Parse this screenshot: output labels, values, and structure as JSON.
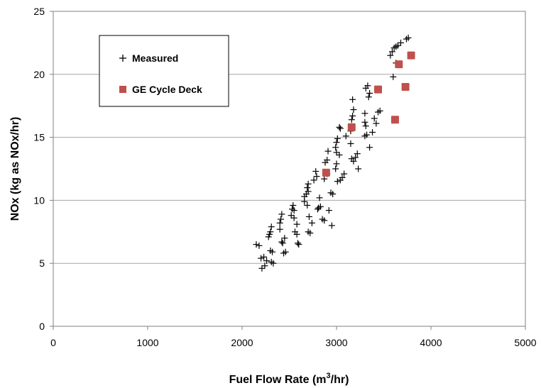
{
  "chart_data": {
    "type": "scatter",
    "xlabel": "Fuel Flow Rate (m",
    "xlabel_sup": "3",
    "xlabel_tail": "/hr)",
    "ylabel": "NOx (kg as NOx/hr)",
    "xlim": [
      0,
      5000
    ],
    "ylim": [
      0,
      25
    ],
    "x_ticks": [
      "0",
      "1000",
      "2000",
      "3000",
      "4000",
      "5000"
    ],
    "y_ticks": [
      "0",
      "5",
      "10",
      "15",
      "20",
      "25"
    ],
    "grid": "horizontal",
    "legend_position": "top-left",
    "series": [
      {
        "name": "Measured",
        "marker": "plus",
        "color": "#000000",
        "points": [
          [
            2150,
            6.5
          ],
          [
            2180,
            6.4
          ],
          [
            2200,
            5.4
          ],
          [
            2230,
            5.5
          ],
          [
            2210,
            4.6
          ],
          [
            2240,
            4.8
          ],
          [
            2260,
            5.2
          ],
          [
            2290,
            7.3
          ],
          [
            2300,
            7.5
          ],
          [
            2310,
            7.9
          ],
          [
            2280,
            7.1
          ],
          [
            2300,
            6.0
          ],
          [
            2320,
            5.9
          ],
          [
            2310,
            5.1
          ],
          [
            2330,
            5.0
          ],
          [
            2400,
            8.2
          ],
          [
            2410,
            8.5
          ],
          [
            2420,
            8.9
          ],
          [
            2400,
            7.7
          ],
          [
            2420,
            6.7
          ],
          [
            2430,
            6.6
          ],
          [
            2440,
            5.8
          ],
          [
            2460,
            5.9
          ],
          [
            2450,
            7.0
          ],
          [
            2530,
            9.3
          ],
          [
            2540,
            9.6
          ],
          [
            2550,
            9.2
          ],
          [
            2520,
            8.8
          ],
          [
            2550,
            8.6
          ],
          [
            2560,
            7.5
          ],
          [
            2580,
            7.3
          ],
          [
            2590,
            6.6
          ],
          [
            2600,
            6.5
          ],
          [
            2580,
            8.1
          ],
          [
            2660,
            10.3
          ],
          [
            2680,
            10.5
          ],
          [
            2700,
            10.7
          ],
          [
            2690,
            11.0
          ],
          [
            2700,
            11.3
          ],
          [
            2660,
            9.9
          ],
          [
            2690,
            9.6
          ],
          [
            2710,
            8.7
          ],
          [
            2700,
            7.5
          ],
          [
            2720,
            7.4
          ],
          [
            2740,
            8.2
          ],
          [
            2760,
            11.6
          ],
          [
            2790,
            11.9
          ],
          [
            2780,
            12.3
          ],
          [
            2800,
            9.3
          ],
          [
            2810,
            9.4
          ],
          [
            2830,
            9.5
          ],
          [
            2850,
            8.5
          ],
          [
            2870,
            8.4
          ],
          [
            2820,
            10.2
          ],
          [
            2880,
            13.0
          ],
          [
            2900,
            13.2
          ],
          [
            2910,
            13.9
          ],
          [
            2870,
            11.7
          ],
          [
            2900,
            12.1
          ],
          [
            2940,
            10.6
          ],
          [
            2960,
            10.5
          ],
          [
            2920,
            9.2
          ],
          [
            2950,
            8.0
          ],
          [
            3000,
            14.6
          ],
          [
            3010,
            14.9
          ],
          [
            3030,
            15.8
          ],
          [
            3040,
            15.7
          ],
          [
            2990,
            14.2
          ],
          [
            3000,
            13.8
          ],
          [
            3030,
            13.6
          ],
          [
            2990,
            12.5
          ],
          [
            3010,
            11.5
          ],
          [
            3040,
            11.6
          ],
          [
            3060,
            11.8
          ],
          [
            3080,
            12.1
          ],
          [
            3000,
            12.9
          ],
          [
            3160,
            16.4
          ],
          [
            3170,
            16.7
          ],
          [
            3180,
            17.2
          ],
          [
            3170,
            18.0
          ],
          [
            3150,
            15.5
          ],
          [
            3150,
            14.5
          ],
          [
            3160,
            13.3
          ],
          [
            3180,
            13.1
          ],
          [
            3200,
            13.4
          ],
          [
            3220,
            13.7
          ],
          [
            3230,
            12.5
          ],
          [
            3100,
            15.1
          ],
          [
            3310,
            18.9
          ],
          [
            3330,
            19.1
          ],
          [
            3350,
            18.5
          ],
          [
            3340,
            18.2
          ],
          [
            3300,
            16.9
          ],
          [
            3310,
            15.9
          ],
          [
            3300,
            15.1
          ],
          [
            3320,
            15.2
          ],
          [
            3350,
            14.2
          ],
          [
            3380,
            15.4
          ],
          [
            3300,
            16.2
          ],
          [
            3420,
            16.1
          ],
          [
            3440,
            17.0
          ],
          [
            3460,
            17.1
          ],
          [
            3400,
            16.5
          ],
          [
            3570,
            21.5
          ],
          [
            3590,
            21.8
          ],
          [
            3610,
            22.1
          ],
          [
            3630,
            22.2
          ],
          [
            3650,
            22.3
          ],
          [
            3680,
            22.5
          ],
          [
            3740,
            22.8
          ],
          [
            3760,
            22.9
          ],
          [
            3600,
            19.8
          ],
          [
            3630,
            20.9
          ]
        ]
      },
      {
        "name": "GE Cycle Deck",
        "marker": "square",
        "color": "#c0504d",
        "points": [
          [
            2890,
            12.2
          ],
          [
            3160,
            15.8
          ],
          [
            3440,
            18.8
          ],
          [
            3620,
            16.4
          ],
          [
            3660,
            20.8
          ],
          [
            3730,
            19.0
          ],
          [
            3790,
            21.5
          ]
        ]
      }
    ]
  }
}
